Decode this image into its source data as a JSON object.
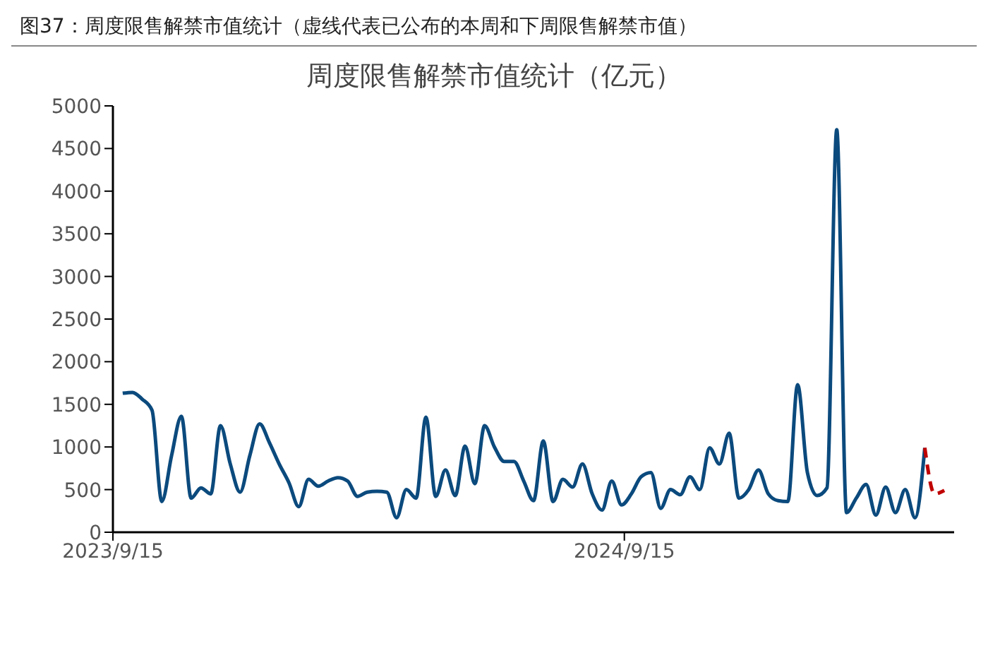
{
  "chart_data": {
    "type": "line",
    "subtitle": "图37：周度限售解禁市值统计（虚线代表已公布的本周和下周限售解禁市值）",
    "title": "周度限售解禁市值统计（亿元）",
    "x": [
      "2023-09-22",
      "2023-09-29",
      "2023-10-06",
      "2023-10-13",
      "2023-10-20",
      "2023-10-27",
      "2023-11-03",
      "2023-11-10",
      "2023-11-17",
      "2023-11-24",
      "2023-12-01",
      "2023-12-08",
      "2023-12-15",
      "2023-12-22",
      "2023-12-29",
      "2024-01-05",
      "2024-01-12",
      "2024-01-19",
      "2024-01-26",
      "2024-02-02",
      "2024-02-09",
      "2024-02-16",
      "2024-02-23",
      "2024-03-01",
      "2024-03-08",
      "2024-03-15",
      "2024-03-22",
      "2024-03-29",
      "2024-04-05",
      "2024-04-12",
      "2024-04-19",
      "2024-04-26",
      "2024-05-03",
      "2024-05-10",
      "2024-05-17",
      "2024-05-24",
      "2024-05-31",
      "2024-06-07",
      "2024-06-14",
      "2024-06-21",
      "2024-06-28",
      "2024-07-05",
      "2024-07-12",
      "2024-07-19",
      "2024-07-26",
      "2024-08-02",
      "2024-08-09",
      "2024-08-16",
      "2024-08-23",
      "2024-08-30",
      "2024-09-06",
      "2024-09-13",
      "2024-09-20",
      "2024-09-27",
      "2024-10-04",
      "2024-10-11",
      "2024-10-18",
      "2024-10-25",
      "2024-11-01",
      "2024-11-08",
      "2024-11-15",
      "2024-11-22",
      "2024-11-29",
      "2024-12-06",
      "2024-12-13",
      "2024-12-20",
      "2024-12-27",
      "2025-01-03",
      "2025-01-10",
      "2025-01-17",
      "2025-01-24",
      "2025-01-31",
      "2025-02-07",
      "2025-02-14",
      "2025-02-21",
      "2025-02-28",
      "2025-03-07",
      "2025-03-14",
      "2025-03-21",
      "2025-03-28",
      "2025-04-04",
      "2025-04-11",
      "2025-04-18"
    ],
    "series": [
      {
        "color": "#0b4a7d",
        "line_style": "solid",
        "values": [
          1630,
          1640,
          1560,
          1430,
          360,
          900,
          1360,
          400,
          520,
          450,
          1250,
          800,
          470,
          900,
          1270,
          1050,
          800,
          580,
          300,
          620,
          540,
          600,
          640,
          600,
          420,
          470,
          480,
          470,
          170,
          500,
          400,
          1350,
          420,
          730,
          430,
          1010,
          570,
          1250,
          1000,
          830,
          830,
          600,
          370,
          1070,
          360,
          620,
          530,
          800,
          450,
          260,
          600,
          320,
          450,
          650,
          700,
          280,
          500,
          440,
          650,
          500,
          990,
          800,
          1160,
          400,
          500,
          730,
          450,
          370,
          360,
          1730,
          700,
          430,
          520,
          4720,
          230,
          400,
          560,
          200,
          530,
          230,
          500,
          170,
          990
        ]
      },
      {
        "color": "#c00000",
        "line_style": "dashed",
        "x": [
          "2025-04-18",
          "2025-04-25",
          "2025-05-02"
        ],
        "values": [
          990,
          450,
          490
        ]
      }
    ],
    "xlim": [
      "2023-09-15",
      "2025-05-09"
    ],
    "xticks": [
      {
        "value": "2023-09-15",
        "label": "2023/9/15"
      },
      {
        "value": "2024-09-15",
        "label": "2024/9/15"
      }
    ],
    "ylim": [
      0,
      5000
    ],
    "yticks": [
      0,
      500,
      1000,
      1500,
      2000,
      2500,
      3000,
      3500,
      4000,
      4500,
      5000
    ],
    "grid": false,
    "legend": false,
    "marker": "none"
  }
}
